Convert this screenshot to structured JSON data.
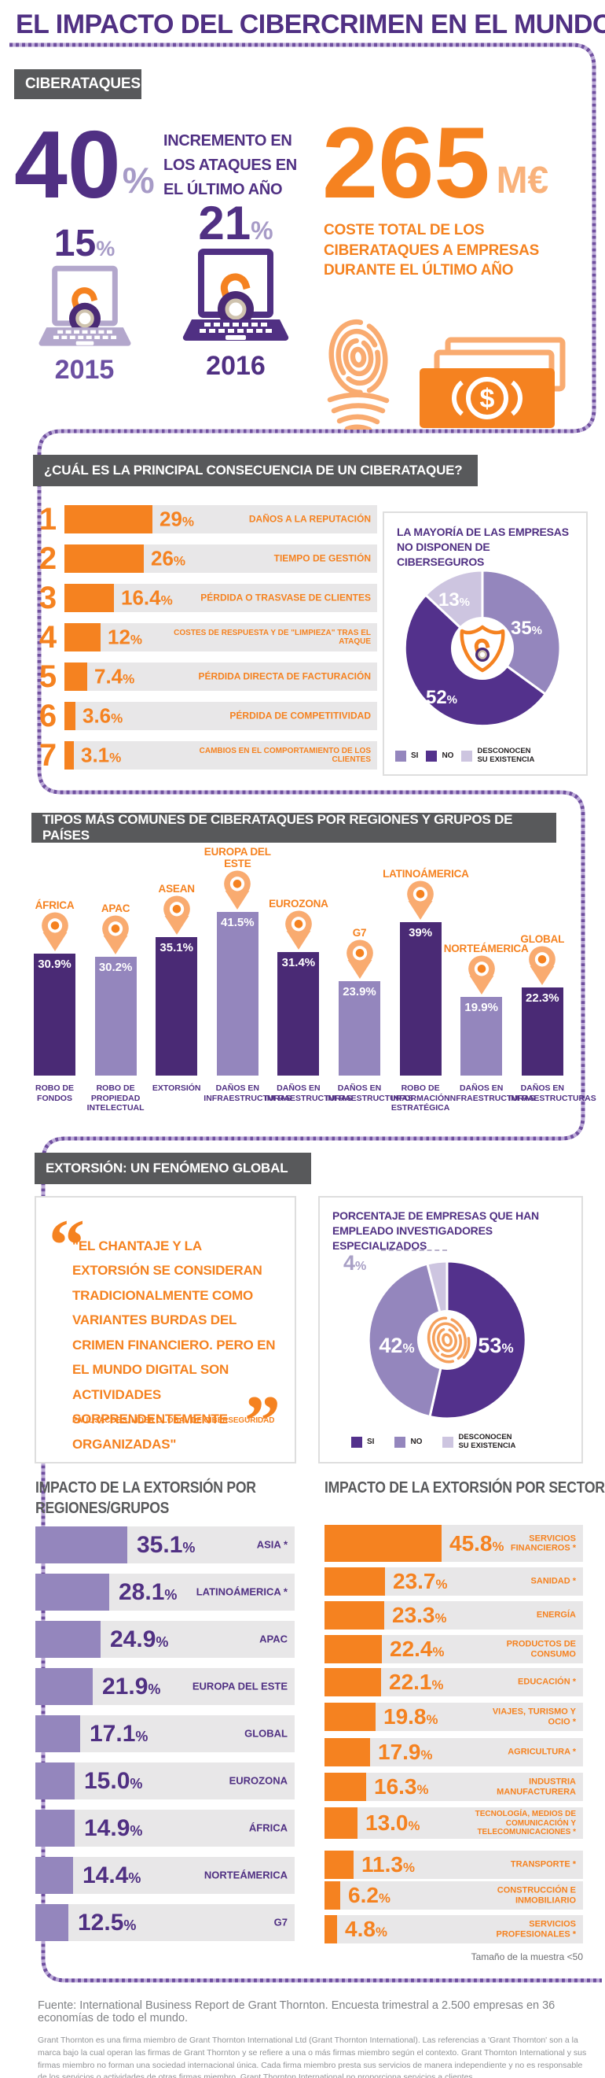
{
  "colors": {
    "purple_dark": "#503083",
    "purple_donut_dark": "#53318c",
    "purple_medium": "#9486bd",
    "lavender": "#cdc5e0",
    "laptop_light": "#b3a7cc",
    "orange": "#f58220",
    "orange_light": "#f9ab70",
    "header_gray": "#58595b",
    "row_gray": "#e8e7e8"
  },
  "title": "EL IMPACTO DEL CIBERCRIMEN EN EL MUNDO",
  "cyberattacks": {
    "section_label": "CIBERATAQUES",
    "increase_value": "40",
    "increase_sign": "%",
    "increase_text": "INCREMENTO EN LOS ATAQUES EN EL ÚLTIMO AÑO",
    "year2015": {
      "value": "15",
      "sign": "%",
      "year": "2015"
    },
    "year2016": {
      "value": "21",
      "sign": "%",
      "year": "2016"
    },
    "cost_value": "265",
    "cost_unit": "M€",
    "cost_text": "COSTE TOTAL DE LOS CIBERATAQUES A EMPRESAS DURANTE EL ÚLTIMO AÑO"
  },
  "consequences": {
    "header": "¿CUÁL ES LA PRINCIPAL CONSECUENCIA DE UN CIBERATAQUE?",
    "items": [
      {
        "rank": "1",
        "pct": "29",
        "label": "DAÑOS A LA REPUTACIÓN"
      },
      {
        "rank": "2",
        "pct": "26",
        "label": "TIEMPO DE GESTIÓN"
      },
      {
        "rank": "3",
        "pct": "16.4",
        "label": "PÉRDIDA O TRASVASE DE CLIENTES"
      },
      {
        "rank": "4",
        "pct": "12",
        "label": "COSTES DE RESPUESTA Y DE \"LIMPIEZA\" TRAS EL ATAQUE"
      },
      {
        "rank": "5",
        "pct": "7.4",
        "label": "PÉRDIDA DIRECTA DE FACTURACIÓN"
      },
      {
        "rank": "6",
        "pct": "3.6",
        "label": "PÉRDIDA DE COMPETITIVIDAD"
      },
      {
        "rank": "7",
        "pct": "3.1",
        "label": "CAMBIOS EN EL COMPORTAMIENTO DE LOS CLIENTES"
      }
    ],
    "insurance": {
      "title": "LA MAYORÍA DE LAS EMPRESAS NO DISPONEN DE CIBERSEGUROS",
      "slices": [
        {
          "label": "SI",
          "value": 35,
          "display": "35"
        },
        {
          "label": "NO",
          "value": 52,
          "display": "52"
        },
        {
          "label": "DESCONOCEN SU EXISTENCIA",
          "value": 13,
          "display": "13"
        }
      ],
      "legend": [
        "SI",
        "NO",
        "DESCONOCEN SU EXISTENCIA"
      ]
    }
  },
  "regions_chart": {
    "header": "TIPOS MÁS COMUNES DE CIBERATAQUES POR REGIONES Y GRUPOS DE PAÍSES",
    "bars": [
      {
        "region": "ÁFRICA",
        "value": 30.9,
        "display": "30.9%",
        "type": "ROBO DE FONDOS",
        "shade": "dark"
      },
      {
        "region": "APAC",
        "value": 30.2,
        "display": "30.2%",
        "type": "ROBO DE PROPIEDAD INTELECTUAL",
        "shade": "light"
      },
      {
        "region": "ASEAN",
        "value": 35.1,
        "display": "35.1%",
        "type": "EXTORSIÓN",
        "shade": "dark"
      },
      {
        "region": "EUROPA DEL ESTE",
        "value": 41.5,
        "display": "41.5%",
        "type": "DAÑOS EN INFRAESTRUCTURAS",
        "shade": "light"
      },
      {
        "region": "EUROZONA",
        "value": 31.4,
        "display": "31.4%",
        "type": "DAÑOS EN INFRAESTRUCTURAS",
        "shade": "dark"
      },
      {
        "region": "G7",
        "value": 23.9,
        "display": "23.9%",
        "type": "DAÑOS EN INFRAESTRUCTURAS",
        "shade": "light"
      },
      {
        "region": "LATINOÁMERICA",
        "value": 39,
        "display": "39%",
        "type": "ROBO DE INFORMACIÓN ESTRATÉGICA",
        "shade": "dark"
      },
      {
        "region": "NORTEÁMERICA",
        "value": 19.9,
        "display": "19.9%",
        "type": "DAÑOS EN INFRAESTRUCTURAS",
        "shade": "light"
      },
      {
        "region": "GLOBAL",
        "value": 22.3,
        "display": "22.3%",
        "type": "DAÑOS EN INFRAESTRUCTURAS",
        "shade": "dark"
      }
    ]
  },
  "extortion": {
    "header": "EXTORSIÓN: UN FENÓMENO GLOBAL",
    "quote": "\"EL CHANTAJE Y LA EXTORSIÓN SE CONSIDERAN TRADICIONALMENTE COMO VARIANTES BURDAS DEL CRIMEN FINANCIERO. PERO EN EL MUNDO DIGITAL SON ACTIVIDADES SORPRENDENTEMENTE ORGANIZADAS\"",
    "quote_author": "PAUL JACOBS, LÍDER GLOBAL DE CIBERSEGURIDAD",
    "open_quote": "“",
    "close_quote": "”",
    "investigators": {
      "title": "PORCENTAJE DE EMPRESAS QUE HAN EMPLEADO INVESTIGADORES ESPECIALIZADOS",
      "slices": [
        {
          "label": "SI",
          "value": 53,
          "display": "53"
        },
        {
          "label": "NO",
          "value": 42,
          "display": "42"
        },
        {
          "label": "DESCONOCEN SU EXISTENCIA",
          "value": 4,
          "display": "4"
        }
      ],
      "callout": "4",
      "callout_sign": "%",
      "legend": [
        "SI",
        "NO",
        "DESCONOCEN SU EXISTENCIA"
      ]
    },
    "regions": {
      "title": "IMPACTO DE LA EXTORSIÓN POR REGIONES/GRUPOS",
      "rows": [
        {
          "pct": "35.1",
          "label": "ASIA *"
        },
        {
          "pct": "28.1",
          "label": "LATINOÁMERICA *"
        },
        {
          "pct": "24.9",
          "label": "APAC"
        },
        {
          "pct": "21.9",
          "label": "EUROPA DEL ESTE"
        },
        {
          "pct": "17.1",
          "label": "GLOBAL"
        },
        {
          "pct": "15.0",
          "label": "EUROZONA"
        },
        {
          "pct": "14.9",
          "label": "ÁFRICA"
        },
        {
          "pct": "14.4",
          "label": "NORTEÁMERICA"
        },
        {
          "pct": "12.5",
          "label": "G7"
        }
      ]
    },
    "sectors": {
      "title": "IMPACTO DE LA EXTORSIÓN POR SECTORES",
      "rows": [
        {
          "pct": "45.8",
          "label": "SERVICIOS FINANCIEROS *"
        },
        {
          "pct": "23.7",
          "label": "SANIDAD *"
        },
        {
          "pct": "23.3",
          "label": "ENERGÍA"
        },
        {
          "pct": "22.4",
          "label": "PRODUCTOS DE CONSUMO"
        },
        {
          "pct": "22.1",
          "label": "EDUCACIÓN *"
        },
        {
          "pct": "19.8",
          "label": "VIAJES, TURISMO Y OCIO *"
        },
        {
          "pct": "17.9",
          "label": "AGRICULTURA *"
        },
        {
          "pct": "16.3",
          "label": "INDUSTRIA MANUFACTURERA"
        },
        {
          "pct": "13.0",
          "label": "TECNOLOGÍA, MEDIOS DE COMUNICACIÓN Y TELECOMUNICACIONES *"
        },
        {
          "pct": "11.3",
          "label": "TRANSPORTE *"
        },
        {
          "pct": "6.2",
          "label": "CONSTRUCCIÓN E INMOBILIARIO"
        },
        {
          "pct": "4.8",
          "label": "SERVICIOS PROFESIONALES *"
        }
      ]
    },
    "sample_note": "Tamaño de la muestra <50"
  },
  "footer": {
    "fuente": "Fuente: International Business Report de Grant Thornton. Encuesta trimestral a 2.500 empresas en 36 economías de todo el mundo.",
    "disclaimer": "Grant Thornton es una firma miembro de Grant Thornton International Ltd (Grant Thornton International). Las referencias a 'Grant Thornton' son a la marca bajo la cual operan las firmas de Grant Thornton y se refiere a una o más firmas miembro según el contexto. Grant Thornton International y sus firmas miembro no forman una sociedad internacional única. Cada firma miembro presta sus servicios de manera independiente y no es responsable de los servicios o actividades de otras firmas miembro. Grant Thornton International no proporciona servicios a clientes."
  },
  "chart_data": [
    {
      "type": "bar",
      "title": "¿CUÁL ES LA PRINCIPAL CONSECUENCIA DE UN CIBERATAQUE?",
      "categories": [
        "DAÑOS A LA REPUTACIÓN",
        "TIEMPO DE GESTIÓN",
        "PÉRDIDA O TRASVASE DE CLIENTES",
        "COSTES DE RESPUESTA Y DE \"LIMPIEZA\" TRAS EL ATAQUE",
        "PÉRDIDA DIRECTA DE FACTURACIÓN",
        "PÉRDIDA DE COMPETITIVIDAD",
        "CAMBIOS EN EL COMPORTAMIENTO DE LOS CLIENTES"
      ],
      "values": [
        29,
        26,
        16.4,
        12,
        7.4,
        3.6,
        3.1
      ],
      "ylabel": "%"
    },
    {
      "type": "pie",
      "title": "LA MAYORÍA DE LAS EMPRESAS NO DISPONEN DE CIBERSEGUROS",
      "categories": [
        "SI",
        "NO",
        "DESCONOCEN SU EXISTENCIA"
      ],
      "values": [
        35,
        52,
        13
      ],
      "legend_position": "bottom"
    },
    {
      "type": "bar",
      "title": "TIPOS MÁS COMUNES DE CIBERATAQUES POR REGIONES Y GRUPOS DE PAÍSES",
      "categories": [
        "ÁFRICA",
        "APAC",
        "ASEAN",
        "EUROPA DEL ESTE",
        "EUROZONA",
        "G7",
        "LATINOÁMERICA",
        "NORTEÁMERICA",
        "GLOBAL"
      ],
      "values": [
        30.9,
        30.2,
        35.1,
        41.5,
        31.4,
        23.9,
        39,
        19.9,
        22.3
      ],
      "annotations": [
        "ROBO DE FONDOS",
        "ROBO DE PROPIEDAD INTELECTUAL",
        "EXTORSIÓN",
        "DAÑOS EN INFRAESTRUCTURAS",
        "DAÑOS EN INFRAESTRUCTURAS",
        "DAÑOS EN INFRAESTRUCTURAS",
        "ROBO DE INFORMACIÓN ESTRATÉGICA",
        "DAÑOS EN INFRAESTRUCTURAS",
        "DAÑOS EN INFRAESTRUCTURAS"
      ],
      "ylabel": "%"
    },
    {
      "type": "pie",
      "title": "PORCENTAJE DE EMPRESAS QUE HAN EMPLEADO INVESTIGADORES ESPECIALIZADOS",
      "categories": [
        "SI",
        "NO",
        "DESCONOCEN SU EXISTENCIA"
      ],
      "values": [
        53,
        42,
        4
      ],
      "legend_position": "bottom"
    },
    {
      "type": "bar",
      "title": "IMPACTO DE LA EXTORSIÓN POR REGIONES/GRUPOS",
      "categories": [
        "ASIA",
        "LATINOÁMERICA",
        "APAC",
        "EUROPA DEL ESTE",
        "GLOBAL",
        "EUROZONA",
        "ÁFRICA",
        "NORTEÁMERICA",
        "G7"
      ],
      "values": [
        35.1,
        28.1,
        24.9,
        21.9,
        17.1,
        15.0,
        14.9,
        14.4,
        12.5
      ],
      "ylabel": "%"
    },
    {
      "type": "bar",
      "title": "IMPACTO DE LA EXTORSIÓN POR SECTORES",
      "categories": [
        "SERVICIOS FINANCIEROS",
        "SANIDAD",
        "ENERGÍA",
        "PRODUCTOS DE CONSUMO",
        "EDUCACIÓN",
        "VIAJES, TURISMO Y OCIO",
        "AGRICULTURA",
        "INDUSTRIA MANUFACTURERA",
        "TECNOLOGÍA, MEDIOS DE COMUNICACIÓN Y TELECOMUNICACIONES",
        "TRANSPORTE",
        "CONSTRUCCIÓN E INMOBILIARIO",
        "SERVICIOS PROFESIONALES"
      ],
      "values": [
        45.8,
        23.7,
        23.3,
        22.4,
        22.1,
        19.8,
        17.9,
        16.3,
        13.0,
        11.3,
        6.2,
        4.8
      ],
      "ylabel": "%"
    }
  ]
}
